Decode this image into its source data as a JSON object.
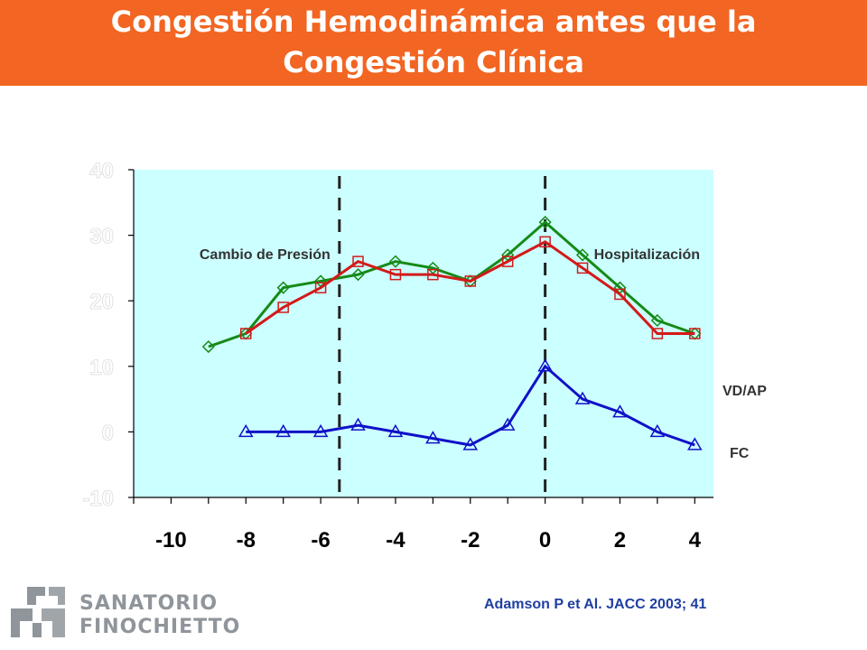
{
  "header": {
    "title_line1": "Congestión Hemodinámica antes que la",
    "title_line2": "Congestión Clínica",
    "banner_color": "#f26522"
  },
  "chart_data": {
    "type": "line",
    "x_ticks": [
      -10,
      -8,
      -6,
      -4,
      -2,
      0,
      2,
      4
    ],
    "xlim": [
      -11,
      4.5
    ],
    "y_ticks": [
      -10,
      0,
      10,
      20,
      30,
      40
    ],
    "ylim": [
      -10,
      40
    ],
    "plot_background": "#ccffff",
    "vlines": [
      {
        "x": -5.5,
        "label": "Cambio de Presión"
      },
      {
        "x": 0,
        "label": "Hospitalización"
      }
    ],
    "series": [
      {
        "marker": "diamond",
        "color": "#168a16",
        "x": [
          -9,
          -8,
          -7,
          -6,
          -5,
          -4,
          -3,
          -2,
          -1,
          0,
          1,
          2,
          3,
          4
        ],
        "y": [
          13,
          15,
          22,
          23,
          24,
          26,
          25,
          23,
          27,
          32,
          27,
          22,
          17,
          15
        ]
      },
      {
        "marker": "square",
        "color": "#d21a1a",
        "x": [
          -8,
          -7,
          -6,
          -5,
          -4,
          -3,
          -2,
          -1,
          0,
          1,
          2,
          3,
          4
        ],
        "y": [
          15,
          19,
          22,
          26,
          24,
          24,
          23,
          26,
          29,
          25,
          21,
          15,
          15
        ]
      },
      {
        "marker": "triangle",
        "color": "#1010c8",
        "x": [
          -8,
          -7,
          -6,
          -5,
          -4,
          -3,
          -2,
          -1,
          0,
          1,
          2,
          3,
          4
        ],
        "y": [
          0,
          0,
          0,
          1,
          0,
          -1,
          -2,
          1,
          10,
          5,
          3,
          0,
          -2
        ]
      }
    ],
    "right_labels": [
      "VD/AP",
      "FC"
    ]
  },
  "footer": {
    "citation": "Adamson P et Al. JACC 2003; 41",
    "logo_line1": "SANATORIO",
    "logo_line2": "FINOCHIETTO"
  }
}
